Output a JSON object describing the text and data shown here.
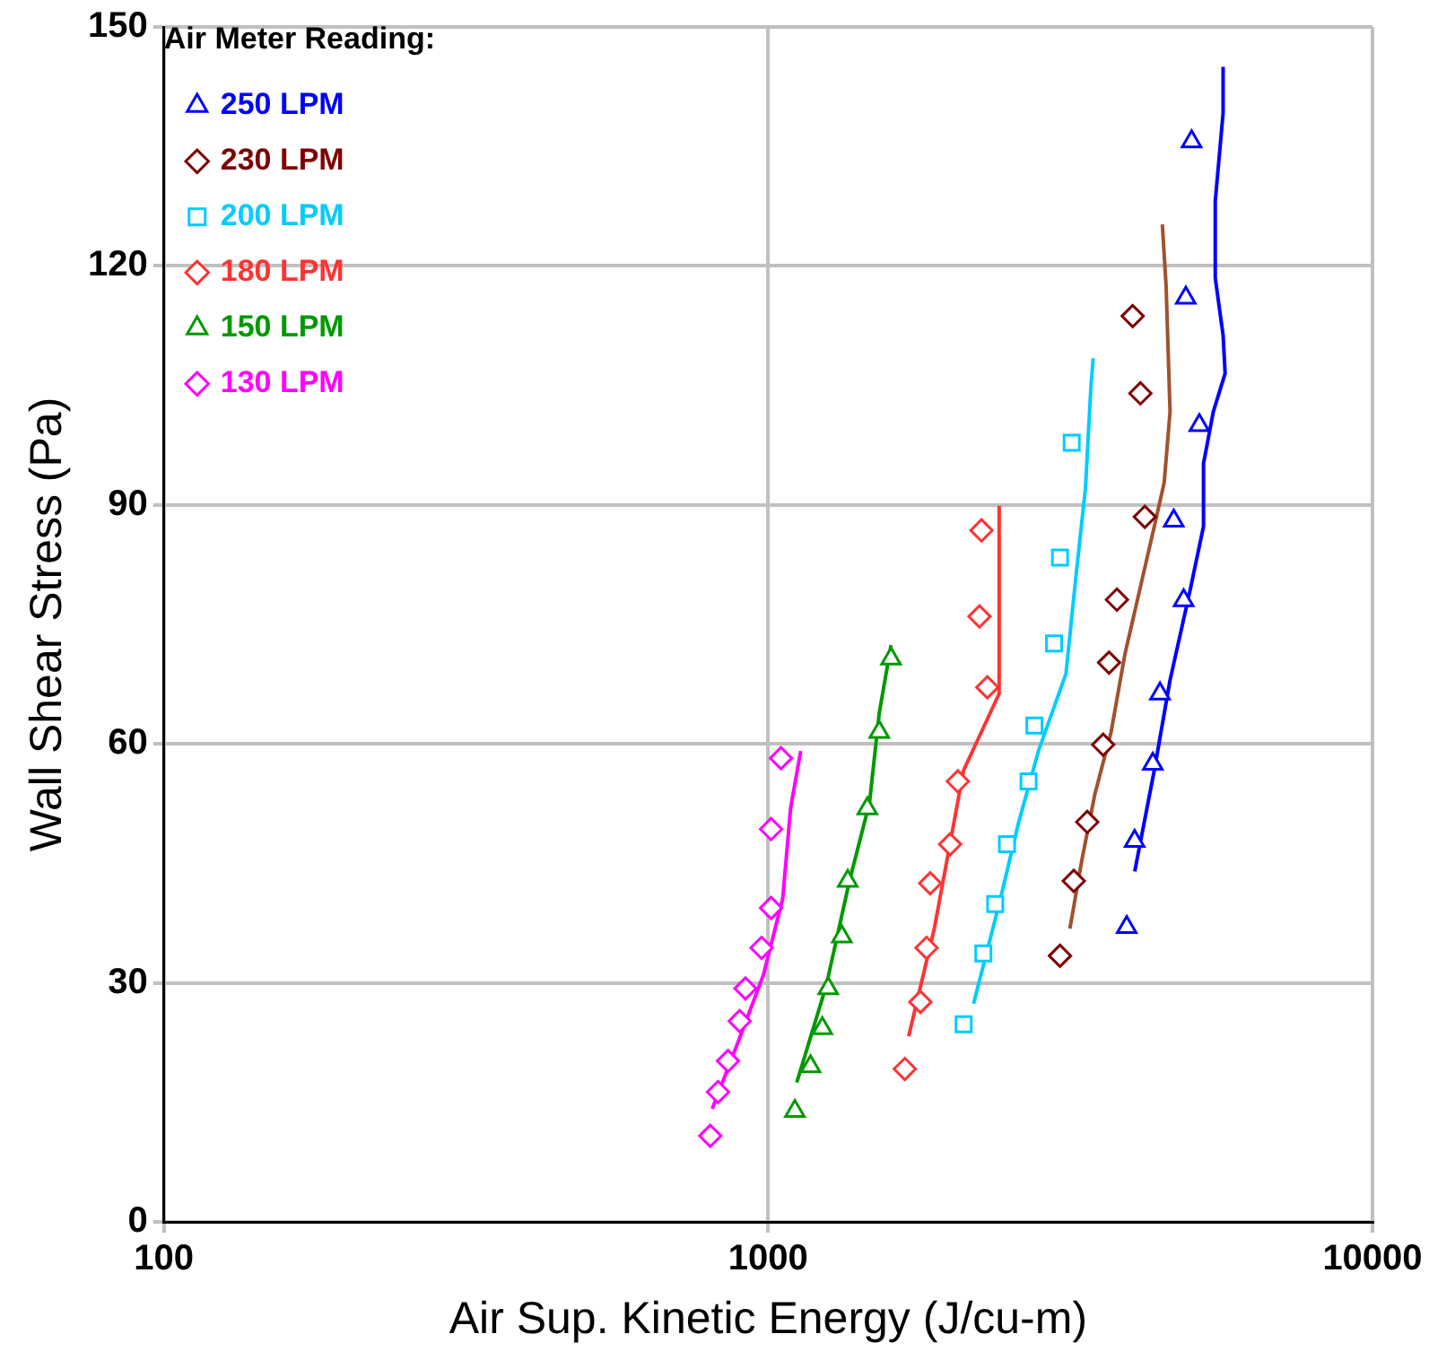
{
  "chart_data": {
    "type": "scatter",
    "xlabel": "Air Sup. Kinetic Energy (J/cu-m)",
    "ylabel": "Wall Shear Stress (Pa)",
    "legend_title": "Air Meter Reading:",
    "log": "x",
    "xlim": [
      100,
      10000
    ],
    "xticks": [
      100,
      1000,
      10000
    ],
    "ylim": [
      0,
      150
    ],
    "yticks": [
      0,
      30,
      60,
      90,
      120,
      150
    ],
    "grid": true,
    "legend": "top left",
    "series": [
      {
        "name": "250 LPM",
        "color": "#0000ff",
        "type": "scatter",
        "marker": "triangle",
        "x": [
          5020,
          4910,
          5170,
          4690,
          4870,
          4450,
          4330,
          4040,
          3920
        ],
        "values": [
          135.6,
          116,
          100,
          88,
          78,
          66.3,
          57.5,
          47.8,
          37
        ]
      },
      {
        "name": "230 LPM",
        "color": "#800000",
        "type": "scatter",
        "marker": "diamond",
        "x": [
          4010,
          4130,
          4200,
          3777,
          3665,
          3584,
          3373,
          3204,
          3040
        ],
        "values": [
          113.7,
          104,
          88.5,
          78.1,
          70.2,
          59.9,
          50.2,
          42.8,
          33.4
        ]
      },
      {
        "name": "200 LPM",
        "color": "#00ccff",
        "type": "scatter",
        "marker": "square",
        "x": [
          2106,
          2270,
          2375,
          2484,
          2697,
          2758,
          2972,
          3040,
          3179
        ],
        "values": [
          24.8,
          33.7,
          39.9,
          47.4,
          55.3,
          62.3,
          72.6,
          83.4,
          97.8
        ]
      },
      {
        "name": "180 LPM",
        "color": "#ff3333",
        "type": "scatter",
        "marker": "diamond",
        "x": [
          1683,
          1786,
          1828,
          1854,
          2000,
          2060,
          2305,
          2237,
          2254
        ],
        "values": [
          19.2,
          27.6,
          34.4,
          42.5,
          47.4,
          55.3,
          67.1,
          76,
          86.8
        ]
      },
      {
        "name": "150 LPM",
        "color": "#009900",
        "type": "scatter",
        "marker": "triangle",
        "x": [
          1107,
          1175,
          1229,
          1257,
          1324,
          1354,
          1459,
          1527,
          1597
        ],
        "values": [
          13.9,
          19.5,
          24.3,
          29.3,
          35.8,
          42.8,
          51.9,
          61.5,
          70.7
        ]
      },
      {
        "name": "130 LPM",
        "color": "#ff00ff",
        "type": "scatter",
        "marker": "diamond",
        "x": [
          802,
          826,
          858,
          897,
          917,
          975,
          1011,
          1011,
          1050
        ],
        "values": [
          10.8,
          16.3,
          20.2,
          25.2,
          29.3,
          34.4,
          39.4,
          49.3,
          58.2
        ]
      },
      {
        "color": "#0000ff",
        "type": "line",
        "marker": "none",
        "x": [
          4042,
          4355,
          4624,
          4985,
          5253,
          5253,
          5453,
          5704,
          5660,
          5493,
          5493,
          5660,
          5660
        ],
        "values": [
          44,
          56.7,
          68,
          79.1,
          87.3,
          95.2,
          101.7,
          106.5,
          111.3,
          118.5,
          128.1,
          139.2,
          145
        ]
      },
      {
        "color": "#a0522d",
        "type": "line",
        "marker": "none",
        "x": [
          3157,
          3304,
          3470,
          3694,
          3892,
          4355,
          4522,
          4624,
          4555,
          4490
        ],
        "values": [
          36.8,
          45.4,
          53.6,
          61.5,
          71.2,
          87.3,
          92.8,
          101.7,
          117.5,
          125.2
        ]
      },
      {
        "color": "#00ccff",
        "type": "line",
        "marker": "none",
        "x": [
          2187,
          2411,
          2598,
          2800,
          3110,
          3228,
          3350,
          3420,
          3450
        ],
        "values": [
          27.4,
          39.9,
          50.2,
          59.1,
          68.8,
          80.8,
          92.1,
          104.8,
          108.4
        ]
      },
      {
        "color": "#ff3333",
        "type": "line",
        "marker": "none",
        "x": [
          1708,
          1883,
          2106,
          2411,
          2411,
          2411
        ],
        "values": [
          23.3,
          36.8,
          56.7,
          66.3,
          83.2,
          89.9
        ]
      },
      {
        "color": "#009900",
        "type": "line",
        "marker": "none",
        "x": [
          1115,
          1247,
          1365,
          1471,
          1527,
          1597
        ],
        "values": [
          17.5,
          29.6,
          43,
          52.6,
          63.9,
          72.4
        ]
      },
      {
        "color": "#ff00ff",
        "type": "line",
        "marker": "none",
        "x": [
          808,
          890,
          982,
          1057,
          1089,
          1132
        ],
        "values": [
          14.2,
          22.4,
          31,
          40.6,
          51.9,
          59.1
        ]
      }
    ]
  }
}
